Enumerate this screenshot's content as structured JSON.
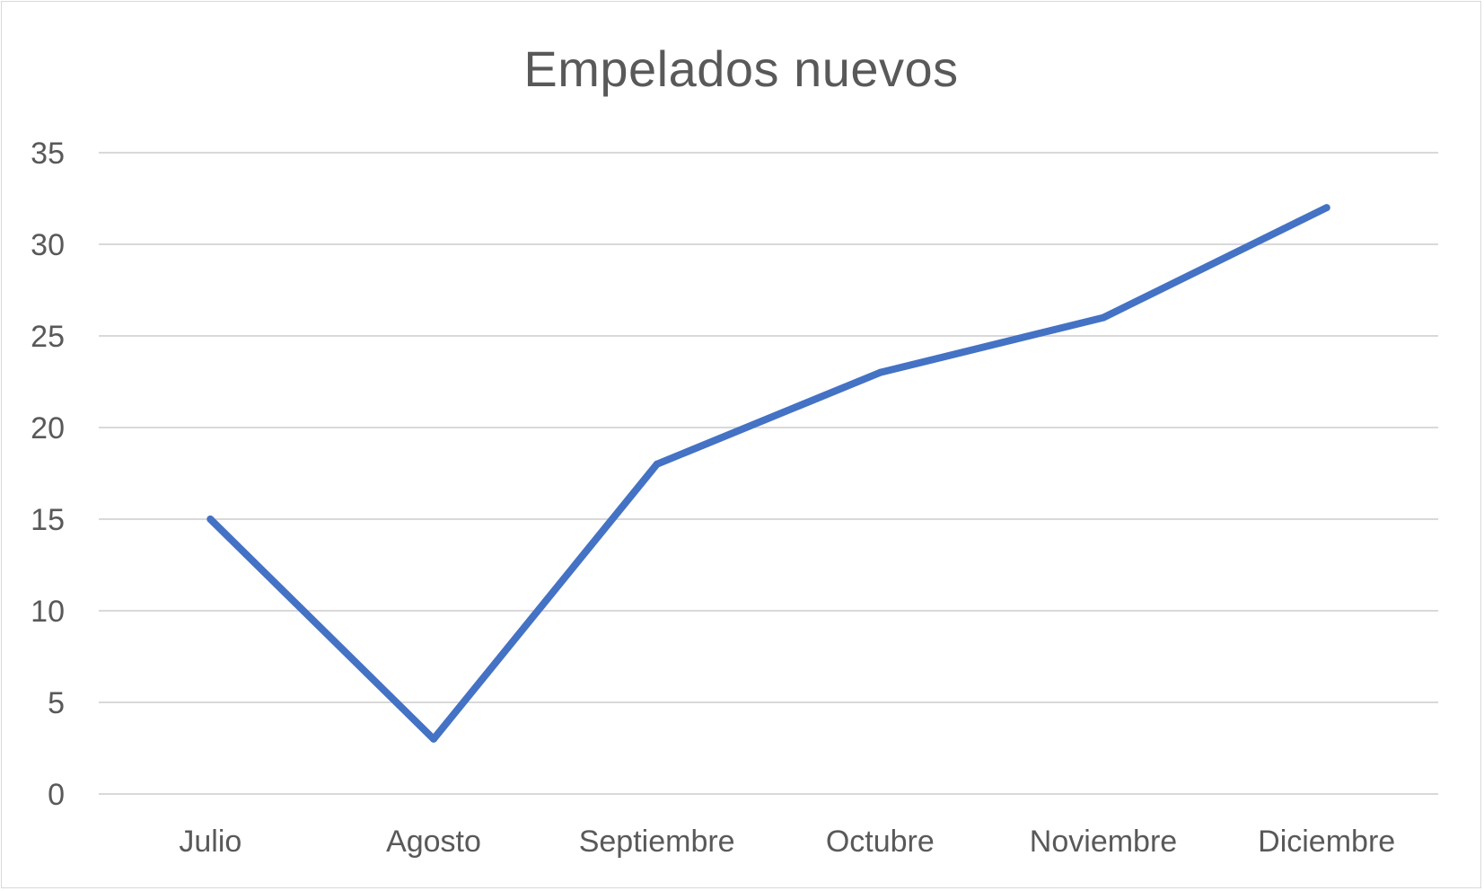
{
  "chart_data": {
    "type": "line",
    "title": "Empelados nuevos",
    "xlabel": "",
    "ylabel": "",
    "categories": [
      "Julio",
      "Agosto",
      "Septiembre",
      "Octubre",
      "Noviembre",
      "Diciembre"
    ],
    "series": [
      {
        "values": [
          15,
          3,
          18,
          23,
          26,
          32
        ],
        "color": "#4472C4"
      }
    ],
    "ylim": [
      0,
      35
    ],
    "yticks": [
      0,
      5,
      10,
      15,
      20,
      25,
      30,
      35
    ],
    "grid": true,
    "legend": "none",
    "colors": {
      "line": "#4472C4",
      "grid": "#d9d9d9",
      "text": "#595959"
    }
  }
}
